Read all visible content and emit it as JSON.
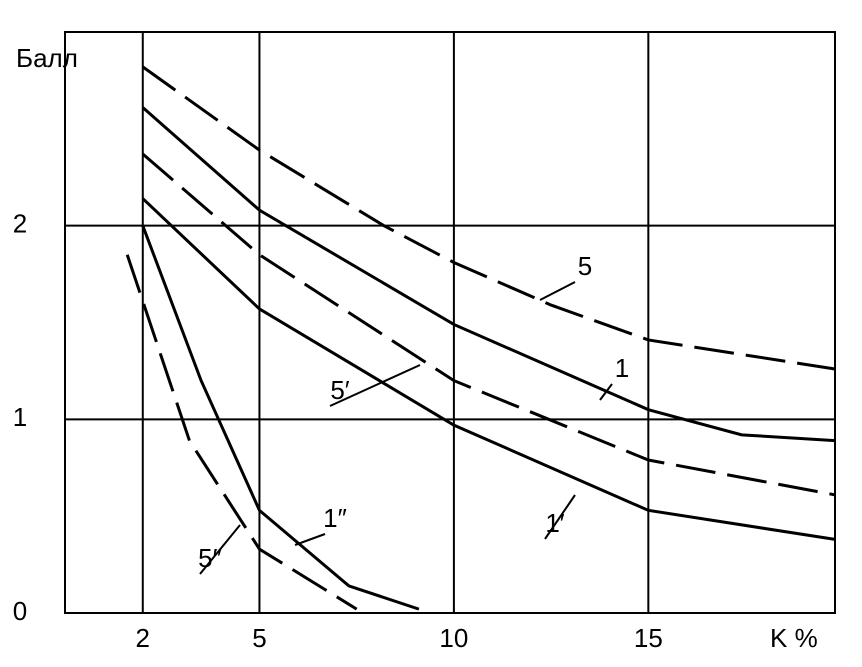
{
  "chart_data": {
    "type": "line",
    "y_label": "Балл",
    "x_label": "K %",
    "xlim": [
      0,
      19.8
    ],
    "ylim": [
      0,
      3
    ],
    "xticks": [
      2,
      5,
      10,
      15
    ],
    "yticks": [
      0,
      1,
      2
    ],
    "grid": true,
    "series": [
      {
        "name": "5",
        "color": "#000000",
        "dashed": true,
        "x": [
          2,
          5,
          8.2,
          10,
          12.5,
          15,
          19.8
        ],
        "values": [
          2.82,
          2.39,
          2.0,
          1.81,
          1.59,
          1.41,
          1.26
        ]
      },
      {
        "name": "1",
        "color": "#000000",
        "dashed": false,
        "x": [
          2,
          5,
          10,
          15,
          17.4,
          19.8
        ],
        "values": [
          2.61,
          2.08,
          1.49,
          1.05,
          0.92,
          0.89
        ]
      },
      {
        "name": "5′",
        "color": "#000000",
        "dashed": true,
        "x": [
          2,
          5,
          10,
          15,
          19.8
        ],
        "values": [
          2.37,
          1.85,
          1.2,
          0.79,
          0.61
        ]
      },
      {
        "name": "1′",
        "color": "#000000",
        "dashed": false,
        "x": [
          2,
          5,
          10,
          15,
          19.8
        ],
        "values": [
          2.14,
          1.57,
          0.97,
          0.53,
          0.38
        ]
      },
      {
        "name": "1″",
        "color": "#000000",
        "dashed": false,
        "x": [
          2,
          3.5,
          5,
          7.3,
          9.1
        ],
        "values": [
          2.0,
          1.2,
          0.53,
          0.14,
          0.02
        ]
      },
      {
        "name": "5″",
        "color": "#000000",
        "dashed": true,
        "x": [
          1.6,
          3.2,
          5,
          7.5
        ],
        "values": [
          1.85,
          0.89,
          0.33,
          0.02
        ]
      }
    ]
  }
}
